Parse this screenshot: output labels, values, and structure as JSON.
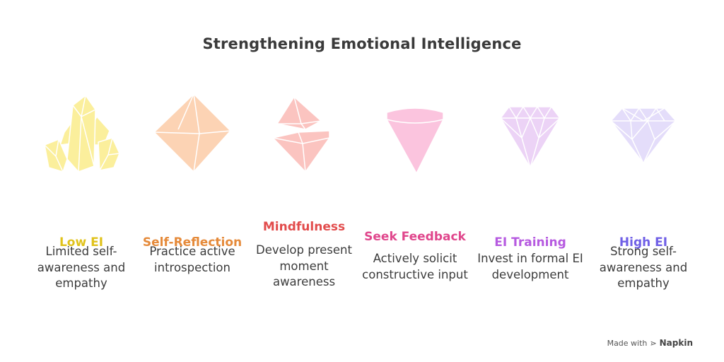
{
  "title": "Strengthening Emotional Intelligence",
  "stages": [
    {
      "label": "Low EI",
      "description": "Limited self-awareness and empathy",
      "label_color": "#e0c21a",
      "icon": "crystal-cluster-icon",
      "fill": "#fbef9c",
      "stroke": "#ffffff"
    },
    {
      "label": "Self-Reflection",
      "description": "Practice active introspection",
      "label_color": "#e58a3a",
      "icon": "octahedron-gem-icon",
      "fill": "#fcd3b4",
      "stroke": "#ffffff"
    },
    {
      "label": "Mindfulness",
      "description": "Develop present moment awareness",
      "label_color": "#e24c4c",
      "icon": "split-gem-icon",
      "fill": "#fbc4c0",
      "stroke": "#ffffff"
    },
    {
      "label": "Seek Feedback",
      "description": "Actively solicit constructive input",
      "label_color": "#e0468c",
      "icon": "cone-gem-icon",
      "fill": "#fbc4de",
      "stroke": "#ffffff"
    },
    {
      "label": "EI Training",
      "description": "Invest in formal EI development",
      "label_color": "#b65ae0",
      "icon": "cut-gem-icon",
      "fill": "#ecd3f6",
      "stroke": "#ffffff"
    },
    {
      "label": "High EI",
      "description": "Strong self-awareness and empathy",
      "label_color": "#6f5fe6",
      "icon": "diamond-icon",
      "fill": "#e4ddfa",
      "stroke": "#ffffff"
    }
  ],
  "footer": {
    "made_with": "Made with",
    "brand": "Napkin"
  }
}
